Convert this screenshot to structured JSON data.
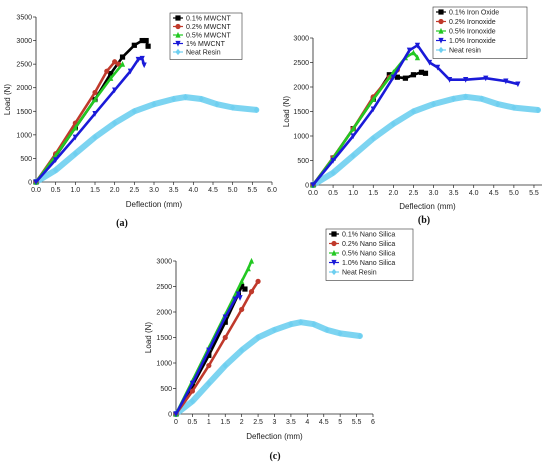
{
  "colors": {
    "black": "#000000",
    "red": "#c0392b",
    "green": "#22c822",
    "blue": "#1a1ad8",
    "cyan": "#6ecff0"
  },
  "chart_data": [
    {
      "type": "line",
      "panel_label": "(a)",
      "xlabel": "Deflection (mm)",
      "ylabel": "Load (N)",
      "xlim": [
        0,
        6
      ],
      "ylim": [
        0,
        3500
      ],
      "xticks": [
        "0.0",
        "0.5",
        "1.0",
        "1.5",
        "2.0",
        "2.5",
        "3.0",
        "3.5",
        "4.0",
        "4.5",
        "5.0",
        "5.5",
        "6.0"
      ],
      "yticks": [
        "0",
        "500",
        "1000",
        "1500",
        "2000",
        "2500",
        "3000",
        "3500"
      ],
      "legend_position": "top-right",
      "series": [
        {
          "name": "0.1% MWCNT",
          "color": "#000000",
          "marker": "square",
          "x": [
            0,
            0.5,
            1.0,
            1.5,
            1.9,
            2.2,
            2.5,
            2.7,
            2.8,
            2.85
          ],
          "y": [
            0,
            550,
            1150,
            1750,
            2300,
            2650,
            2900,
            3000,
            3000,
            2880
          ]
        },
        {
          "name": "0.2% MWCNT",
          "color": "#c0392b",
          "marker": "circle",
          "x": [
            0,
            0.5,
            1.0,
            1.5,
            1.8,
            2.0,
            2.1
          ],
          "y": [
            0,
            600,
            1250,
            1900,
            2350,
            2550,
            2500
          ]
        },
        {
          "name": "0.5% MWCNT",
          "color": "#22c822",
          "marker": "triangle-up",
          "x": [
            0,
            0.5,
            1.0,
            1.5,
            1.9,
            2.2
          ],
          "y": [
            0,
            560,
            1150,
            1750,
            2200,
            2500
          ]
        },
        {
          "name": "1% MWCNT",
          "color": "#1a1ad8",
          "marker": "triangle-down",
          "x": [
            0,
            0.5,
            1.0,
            1.5,
            2.0,
            2.4,
            2.6,
            2.7,
            2.75
          ],
          "y": [
            0,
            470,
            950,
            1450,
            1950,
            2350,
            2600,
            2620,
            2480
          ]
        },
        {
          "name": "Neat Resin",
          "color": "#6ecff0",
          "marker": "diamond",
          "x": [
            0,
            0.5,
            1.0,
            1.5,
            2.0,
            2.5,
            3.0,
            3.5,
            3.8,
            4.2,
            4.6,
            5.0,
            5.6
          ],
          "y": [
            0,
            250,
            600,
            950,
            1250,
            1500,
            1650,
            1760,
            1800,
            1760,
            1650,
            1580,
            1530
          ]
        }
      ]
    },
    {
      "type": "line",
      "panel_label": "(b)",
      "xlabel": "Deflection (mm)",
      "ylabel": "Load (N)",
      "xlim": [
        0,
        5.7
      ],
      "ylim": [
        0,
        3000
      ],
      "xticks": [
        "0.0",
        "0.5",
        "1.0",
        "1.5",
        "2.0",
        "2.5",
        "3.0",
        "3.5",
        "4.0",
        "4.5",
        "5.0",
        "5.5"
      ],
      "yticks": [
        "0",
        "500",
        "1000",
        "1500",
        "2000",
        "2500",
        "3000"
      ],
      "legend_position": "top-right",
      "series": [
        {
          "name": "0.1% Iron Oxide",
          "color": "#000000",
          "marker": "square",
          "x": [
            0,
            0.5,
            1.0,
            1.5,
            1.9,
            2.1,
            2.3,
            2.5,
            2.7,
            2.8
          ],
          "y": [
            0,
            550,
            1150,
            1750,
            2250,
            2200,
            2180,
            2250,
            2300,
            2280
          ]
        },
        {
          "name": "0.2% Ironoxide",
          "color": "#c0392b",
          "marker": "circle",
          "x": [
            0,
            0.5,
            1.0,
            1.5,
            1.9,
            2.1
          ],
          "y": [
            0,
            560,
            1150,
            1800,
            2200,
            2350
          ]
        },
        {
          "name": "0.5% Ironoxide",
          "color": "#22c822",
          "marker": "triangle-up",
          "x": [
            0,
            0.5,
            1.0,
            1.5,
            2.0,
            2.3,
            2.5,
            2.6
          ],
          "y": [
            0,
            550,
            1150,
            1750,
            2300,
            2600,
            2700,
            2600
          ]
        },
        {
          "name": "1.0% Ironoxide",
          "color": "#1a1ad8",
          "marker": "triangle-down",
          "x": [
            0,
            0.5,
            1.0,
            1.5,
            2.0,
            2.4,
            2.6,
            2.9,
            3.1,
            3.4,
            3.8,
            4.3,
            4.8,
            5.1
          ],
          "y": [
            0,
            500,
            1000,
            1550,
            2200,
            2750,
            2850,
            2500,
            2400,
            2150,
            2150,
            2180,
            2120,
            2060
          ]
        },
        {
          "name": "Neat resin",
          "color": "#6ecff0",
          "marker": "diamond",
          "x": [
            0,
            0.5,
            1.0,
            1.5,
            2.0,
            2.5,
            3.0,
            3.5,
            3.8,
            4.2,
            4.6,
            5.0,
            5.6
          ],
          "y": [
            0,
            250,
            600,
            950,
            1250,
            1500,
            1650,
            1760,
            1800,
            1760,
            1650,
            1580,
            1530
          ]
        }
      ]
    },
    {
      "type": "line",
      "panel_label": "(c)",
      "xlabel": "Deflection (mm)",
      "ylabel": "Load (N)",
      "xlim": [
        0,
        6
      ],
      "ylim": [
        0,
        3000
      ],
      "xticks": [
        "0",
        "0.5",
        "1",
        "1.5",
        "2",
        "2.5",
        "3",
        "3.5",
        "4",
        "4.5",
        "5",
        "5.5",
        "6"
      ],
      "yticks": [
        "0",
        "500",
        "1000",
        "1500",
        "2000",
        "2500",
        "3000"
      ],
      "legend_position": "top-right",
      "series": [
        {
          "name": "0.1% Nano Silica",
          "color": "#000000",
          "marker": "square",
          "x": [
            0,
            0.5,
            1.0,
            1.5,
            1.9,
            2.0,
            2.1
          ],
          "y": [
            0,
            550,
            1150,
            1800,
            2350,
            2500,
            2450
          ]
        },
        {
          "name": "0.2% Nano Silica",
          "color": "#c0392b",
          "marker": "circle",
          "x": [
            0,
            0.5,
            1.0,
            1.5,
            2.0,
            2.3,
            2.5
          ],
          "y": [
            0,
            450,
            950,
            1500,
            2050,
            2400,
            2600
          ]
        },
        {
          "name": "0.5% Nano Silica",
          "color": "#22c822",
          "marker": "triangle-up",
          "x": [
            0,
            0.5,
            1.0,
            1.5,
            2.0,
            2.2,
            2.3
          ],
          "y": [
            0,
            650,
            1300,
            1950,
            2600,
            2850,
            3000
          ]
        },
        {
          "name": "1.0% Nano Silica",
          "color": "#1a1ad8",
          "marker": "triangle-down",
          "x": [
            0,
            0.5,
            1.0,
            1.5,
            1.8,
            1.9,
            1.95
          ],
          "y": [
            0,
            600,
            1250,
            1900,
            2250,
            2350,
            2280
          ]
        },
        {
          "name": "Neat Resin",
          "color": "#6ecff0",
          "marker": "diamond",
          "x": [
            0,
            0.5,
            1.0,
            1.5,
            2.0,
            2.5,
            3.0,
            3.5,
            3.8,
            4.2,
            4.6,
            5.0,
            5.6
          ],
          "y": [
            0,
            250,
            600,
            950,
            1250,
            1500,
            1650,
            1760,
            1800,
            1760,
            1650,
            1580,
            1530
          ]
        }
      ]
    }
  ]
}
